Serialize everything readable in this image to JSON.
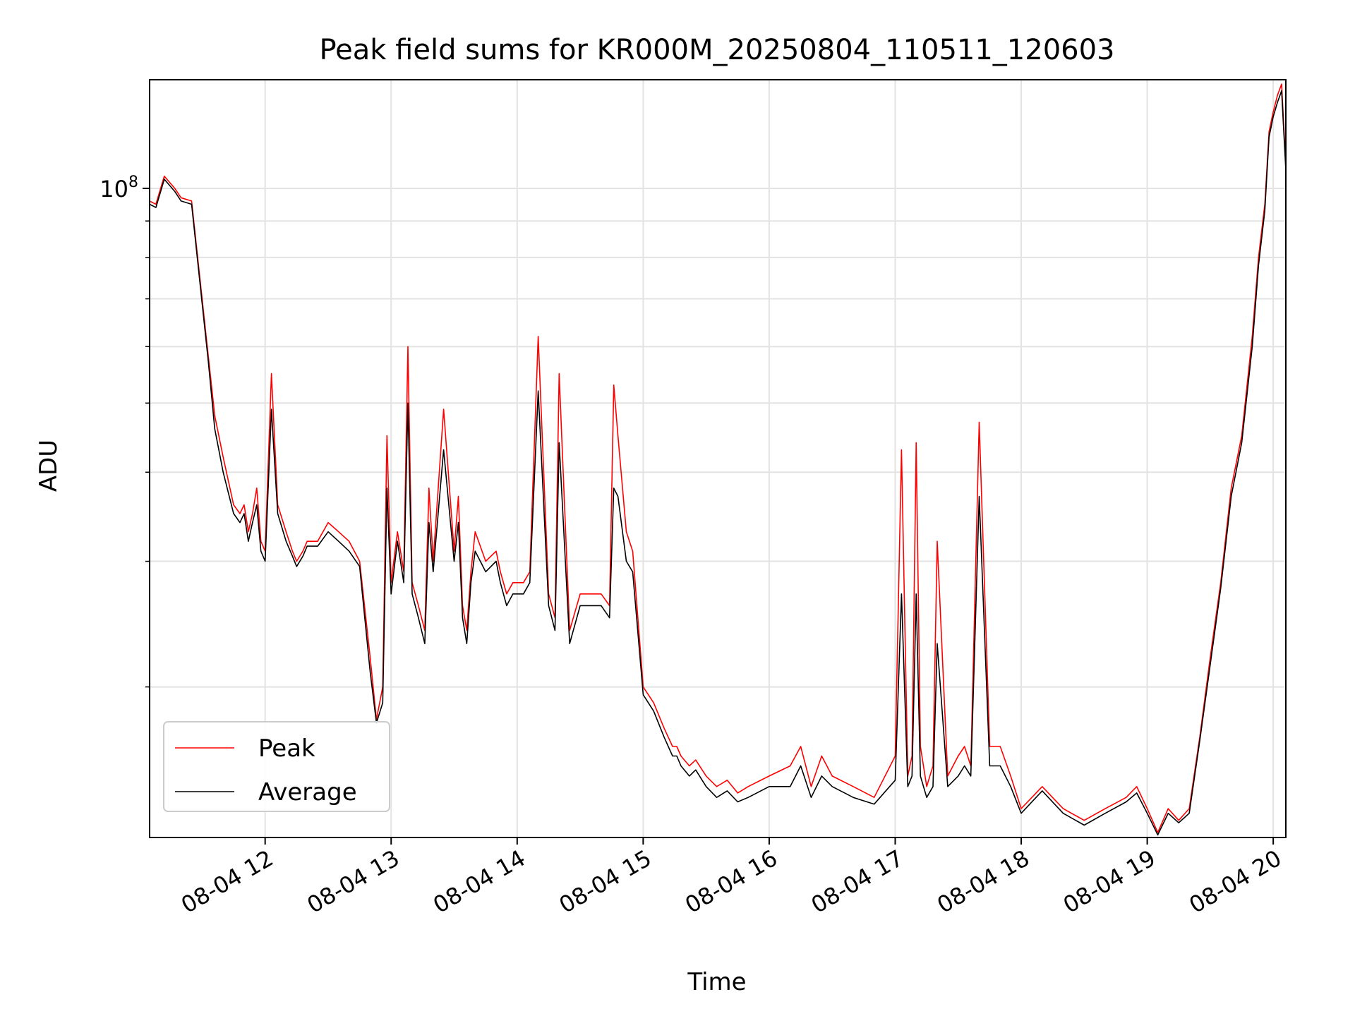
{
  "chart_data": {
    "type": "line",
    "title": "Peak field sums for KR000M_20250804_110511_120603",
    "xlabel": "Time",
    "ylabel": "ADU",
    "y_scale": "log",
    "grid": true,
    "legend_position": "lower-left",
    "x_ticks": [
      "08-04 12",
      "08-04 13",
      "08-04 14",
      "08-04 15",
      "08-04 16",
      "08-04 17",
      "08-04 18",
      "08-04 19",
      "08-04 20"
    ],
    "y_tick_label": {
      "base": "10",
      "exponent": "8"
    },
    "xlim": [
      "2025-08-04 11:05",
      "2025-08-04 20:06"
    ],
    "ylim": [
      12300000,
      142000000
    ],
    "series": [
      {
        "name": "Peak",
        "color": "#ff0000",
        "x": [
          "11:05",
          "11:08",
          "11:12",
          "11:17",
          "11:20",
          "11:25",
          "11:30",
          "11:33",
          "11:36",
          "11:40",
          "11:45",
          "11:48",
          "11:50",
          "11:52",
          "11:54",
          "11:56",
          "11:58",
          "12:00",
          "12:03",
          "12:06",
          "12:10",
          "12:13",
          "12:15",
          "12:18",
          "12:20",
          "12:25",
          "12:30",
          "12:35",
          "12:40",
          "12:45",
          "12:50",
          "12:53",
          "12:56",
          "12:58",
          "13:00",
          "13:03",
          "13:06",
          "13:08",
          "13:10",
          "13:13",
          "13:16",
          "13:18",
          "13:20",
          "13:25",
          "13:30",
          "13:32",
          "13:34",
          "13:36",
          "13:38",
          "13:40",
          "13:45",
          "13:50",
          "13:52",
          "13:55",
          "13:58",
          "14:03",
          "14:06",
          "14:10",
          "14:15",
          "14:18",
          "14:20",
          "14:25",
          "14:30",
          "14:35",
          "14:40",
          "14:44",
          "14:46",
          "14:48",
          "14:52",
          "14:55",
          "15:00",
          "15:05",
          "15:10",
          "15:14",
          "15:16",
          "15:18",
          "15:22",
          "15:25",
          "15:30",
          "15:35",
          "15:40",
          "15:45",
          "15:50",
          "16:00",
          "16:10",
          "16:15",
          "16:20",
          "16:25",
          "16:30",
          "16:40",
          "16:50",
          "17:00",
          "17:03",
          "17:06",
          "17:08",
          "17:10",
          "17:12",
          "17:15",
          "17:18",
          "17:20",
          "17:25",
          "17:30",
          "17:33",
          "17:36",
          "17:40",
          "17:45",
          "17:50",
          "17:55",
          "18:00",
          "18:10",
          "18:20",
          "18:30",
          "18:40",
          "18:50",
          "18:55",
          "19:00",
          "19:05",
          "19:10",
          "19:15",
          "19:20",
          "19:25",
          "19:30",
          "19:35",
          "19:40",
          "19:45",
          "19:50",
          "19:53",
          "19:56",
          "19:58",
          "20:00",
          "20:02",
          "20:04",
          "20:06"
        ],
        "y": [
          96000000,
          95000000,
          104000000,
          100000000,
          97000000,
          96000000,
          70000000,
          58000000,
          48000000,
          42000000,
          36000000,
          35000000,
          36000000,
          33000000,
          35000000,
          38000000,
          32000000,
          31000000,
          55000000,
          36000000,
          33000000,
          31000000,
          30000000,
          31000000,
          32000000,
          32000000,
          34000000,
          33000000,
          32000000,
          30000000,
          22000000,
          18000000,
          20000000,
          45000000,
          28000000,
          33000000,
          29000000,
          60000000,
          28000000,
          26000000,
          24000000,
          38000000,
          30000000,
          49000000,
          31000000,
          37000000,
          26000000,
          24000000,
          29000000,
          33000000,
          30000000,
          31000000,
          29000000,
          27000000,
          28000000,
          28000000,
          29000000,
          62000000,
          27000000,
          25000000,
          55000000,
          24000000,
          27000000,
          27000000,
          27000000,
          26000000,
          53000000,
          45000000,
          33000000,
          31000000,
          20000000,
          19000000,
          17500000,
          16500000,
          16500000,
          16000000,
          15500000,
          15800000,
          15000000,
          14500000,
          14800000,
          14200000,
          14500000,
          15000000,
          15500000,
          16500000,
          14500000,
          16000000,
          15000000,
          14500000,
          14000000,
          16000000,
          43000000,
          15000000,
          16000000,
          44000000,
          16500000,
          14500000,
          15500000,
          32000000,
          15000000,
          16000000,
          16500000,
          15500000,
          47000000,
          16500000,
          16500000,
          15000000,
          13500000,
          14500000,
          13500000,
          13000000,
          13500000,
          14000000,
          14500000,
          13500000,
          12500000,
          13500000,
          13000000,
          13500000,
          17000000,
          22000000,
          28000000,
          38000000,
          45000000,
          62000000,
          80000000,
          95000000,
          120000000,
          128000000,
          135000000,
          140000000,
          108000000
        ]
      },
      {
        "name": "Average",
        "color": "#000000",
        "x": [
          "11:05",
          "11:08",
          "11:12",
          "11:17",
          "11:20",
          "11:25",
          "11:30",
          "11:33",
          "11:36",
          "11:40",
          "11:45",
          "11:48",
          "11:50",
          "11:52",
          "11:54",
          "11:56",
          "11:58",
          "12:00",
          "12:03",
          "12:06",
          "12:10",
          "12:13",
          "12:15",
          "12:18",
          "12:20",
          "12:25",
          "12:30",
          "12:35",
          "12:40",
          "12:45",
          "12:50",
          "12:53",
          "12:56",
          "12:58",
          "13:00",
          "13:03",
          "13:06",
          "13:08",
          "13:10",
          "13:13",
          "13:16",
          "13:18",
          "13:20",
          "13:25",
          "13:30",
          "13:32",
          "13:34",
          "13:36",
          "13:38",
          "13:40",
          "13:45",
          "13:50",
          "13:52",
          "13:55",
          "13:58",
          "14:03",
          "14:06",
          "14:10",
          "14:15",
          "14:18",
          "14:20",
          "14:25",
          "14:30",
          "14:35",
          "14:40",
          "14:44",
          "14:46",
          "14:48",
          "14:52",
          "14:55",
          "15:00",
          "15:05",
          "15:10",
          "15:14",
          "15:16",
          "15:18",
          "15:22",
          "15:25",
          "15:30",
          "15:35",
          "15:40",
          "15:45",
          "15:50",
          "16:00",
          "16:10",
          "16:15",
          "16:20",
          "16:25",
          "16:30",
          "16:40",
          "16:50",
          "17:00",
          "17:03",
          "17:06",
          "17:08",
          "17:10",
          "17:12",
          "17:15",
          "17:18",
          "17:20",
          "17:25",
          "17:30",
          "17:33",
          "17:36",
          "17:40",
          "17:45",
          "17:50",
          "17:55",
          "18:00",
          "18:10",
          "18:20",
          "18:30",
          "18:40",
          "18:50",
          "18:55",
          "19:00",
          "19:05",
          "19:10",
          "19:15",
          "19:20",
          "19:25",
          "19:30",
          "19:35",
          "19:40",
          "19:45",
          "19:50",
          "19:53",
          "19:56",
          "19:58",
          "20:00",
          "20:02",
          "20:04",
          "20:06"
        ],
        "y": [
          95000000,
          94000000,
          103000000,
          99000000,
          96000000,
          95000000,
          69000000,
          57000000,
          46000000,
          40000000,
          35000000,
          34000000,
          35000000,
          32000000,
          34000000,
          36000000,
          31000000,
          30000000,
          49000000,
          35000000,
          32000000,
          30500000,
          29500000,
          30500000,
          31500000,
          31500000,
          33000000,
          32000000,
          31000000,
          29500000,
          21000000,
          17800000,
          19000000,
          38000000,
          27000000,
          32000000,
          28000000,
          50000000,
          27000000,
          25000000,
          23000000,
          34000000,
          29000000,
          43000000,
          30000000,
          34000000,
          25000000,
          23000000,
          28000000,
          31000000,
          29000000,
          30000000,
          28000000,
          26000000,
          27000000,
          27000000,
          28000000,
          52000000,
          26000000,
          24000000,
          44000000,
          23000000,
          26000000,
          26000000,
          26000000,
          25000000,
          38000000,
          37000000,
          30000000,
          29000000,
          19500000,
          18500000,
          17000000,
          16000000,
          16000000,
          15500000,
          15000000,
          15300000,
          14500000,
          14000000,
          14300000,
          13800000,
          14000000,
          14500000,
          14500000,
          15500000,
          14000000,
          15000000,
          14500000,
          14000000,
          13700000,
          14800000,
          27000000,
          14500000,
          15000000,
          27000000,
          15000000,
          14000000,
          14500000,
          23000000,
          14500000,
          15000000,
          15500000,
          15000000,
          37000000,
          15500000,
          15500000,
          14500000,
          13300000,
          14300000,
          13300000,
          12800000,
          13300000,
          13800000,
          14200000,
          13300000,
          12400000,
          13300000,
          12900000,
          13300000,
          16800000,
          21500000,
          27500000,
          37000000,
          44000000,
          60000000,
          78000000,
          93000000,
          118000000,
          126000000,
          132000000,
          137000000,
          106000000
        ]
      }
    ]
  }
}
